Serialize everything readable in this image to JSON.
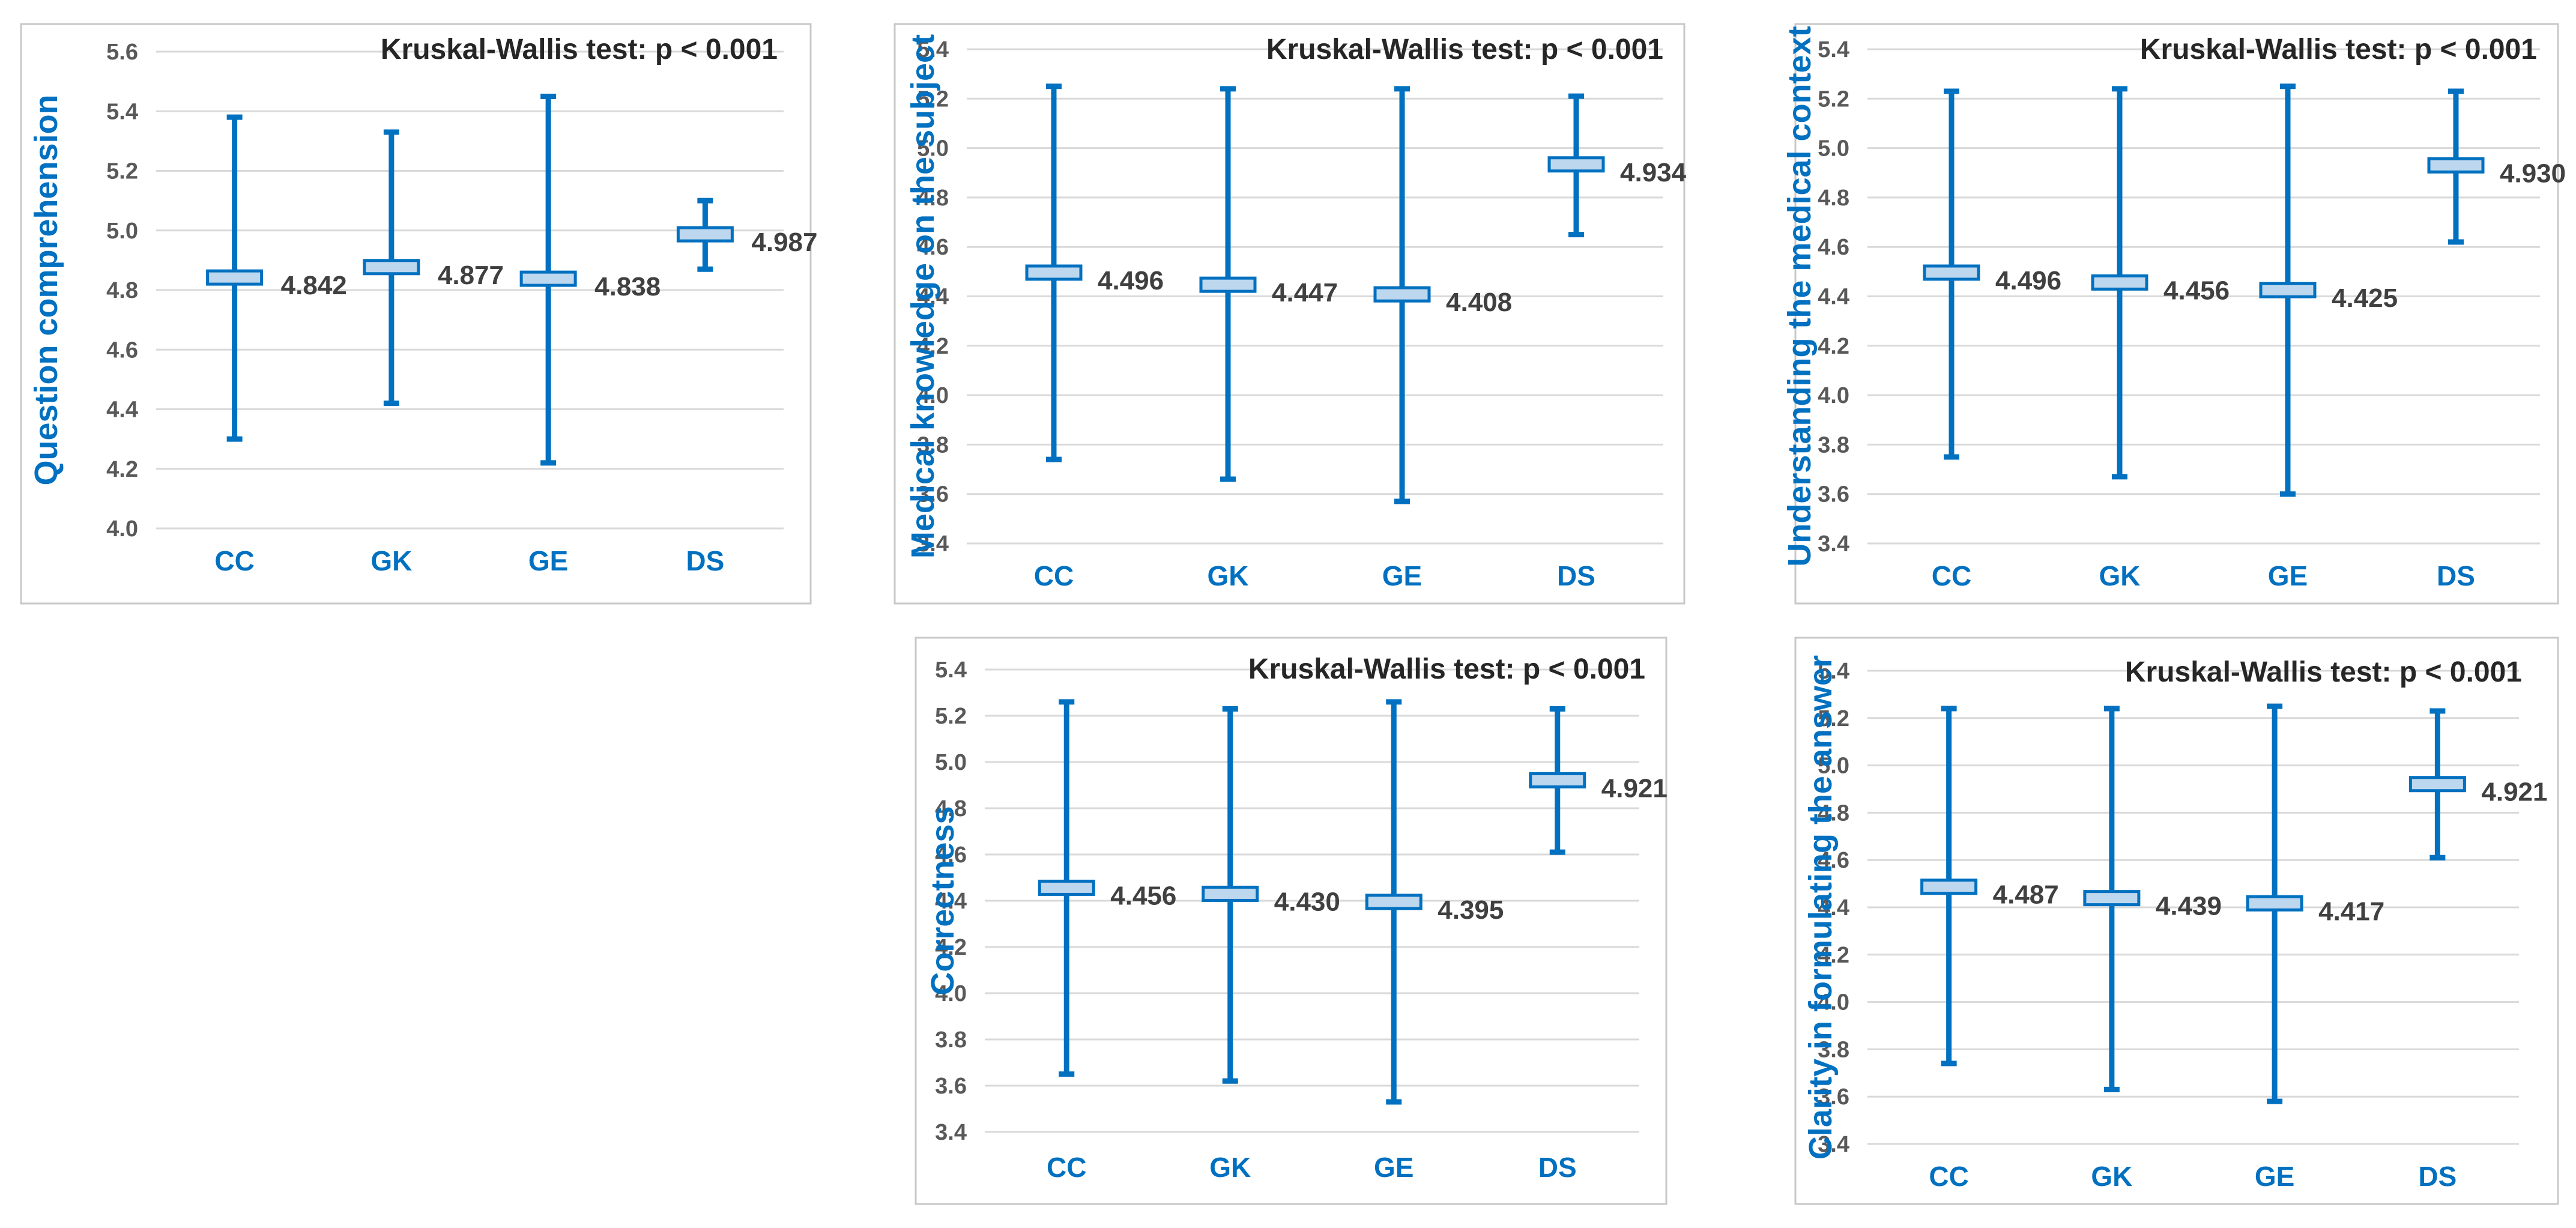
{
  "colors": {
    "accent": "#0070C0",
    "mean_box_fill": "#BDD7EE",
    "gridline": "#D9D9D9",
    "panel_border": "#C8C8C8"
  },
  "chart_data": [
    {
      "type": "error-bar",
      "title": "Kruskal-Wallis test: p < 0.001",
      "ylabel": "Question comprehension",
      "ylim": [
        4.0,
        5.6
      ],
      "yticks": [
        "5.6",
        "5.4",
        "5.2",
        "5.0",
        "4.8",
        "4.6",
        "4.4",
        "4.2",
        "4.0"
      ],
      "grid": true,
      "categories": [
        "CC",
        "GK",
        "GE",
        "DS"
      ],
      "means": [
        4.842,
        4.877,
        4.838,
        4.987
      ],
      "mean_labels": [
        "4.842",
        "4.877",
        "4.838",
        "4.987"
      ],
      "lower": [
        4.3,
        4.42,
        4.22,
        4.87
      ],
      "upper": [
        5.38,
        5.33,
        5.45,
        5.1
      ]
    },
    {
      "type": "error-bar",
      "title": "Kruskal-Wallis test: p < 0.001",
      "ylabel": "Medical knowledge on the subject",
      "ylim": [
        3.4,
        5.4
      ],
      "yticks": [
        "5.4",
        "5.2",
        "5.0",
        "4.8",
        "4.6",
        "4.4",
        "4.2",
        "4.0",
        "3.8",
        "3.6",
        "3.4"
      ],
      "grid": true,
      "categories": [
        "CC",
        "GK",
        "GE",
        "DS"
      ],
      "means": [
        4.496,
        4.447,
        4.408,
        4.934
      ],
      "mean_labels": [
        "4.496",
        "4.447",
        "4.408",
        "4.934"
      ],
      "lower": [
        3.74,
        3.66,
        3.57,
        4.65
      ],
      "upper": [
        5.25,
        5.24,
        5.24,
        5.21
      ]
    },
    {
      "type": "error-bar",
      "title": "Kruskal-Wallis test: p < 0.001",
      "ylabel": "Understanding the medical context",
      "ylim": [
        3.4,
        5.4
      ],
      "yticks": [
        "5.4",
        "5.2",
        "5.0",
        "4.8",
        "4.6",
        "4.4",
        "4.2",
        "4.0",
        "3.8",
        "3.6",
        "3.4"
      ],
      "grid": true,
      "categories": [
        "CC",
        "GK",
        "GE",
        "DS"
      ],
      "means": [
        4.496,
        4.456,
        4.425,
        4.93
      ],
      "mean_labels": [
        "4.496",
        "4.456",
        "4.425",
        "4.930"
      ],
      "lower": [
        3.75,
        3.67,
        3.6,
        4.62
      ],
      "upper": [
        5.23,
        5.24,
        5.25,
        5.23
      ]
    },
    {
      "type": "error-bar",
      "title": "Kruskal-Wallis test: p < 0.001",
      "ylabel": "Correctness",
      "ylim": [
        3.4,
        5.4
      ],
      "yticks": [
        "5.4",
        "5.2",
        "5.0",
        "4.8",
        "4.6",
        "4.4",
        "4.2",
        "4.0",
        "3.8",
        "3.6",
        "3.4"
      ],
      "grid": true,
      "categories": [
        "CC",
        "GK",
        "GE",
        "DS"
      ],
      "means": [
        4.456,
        4.43,
        4.395,
        4.921
      ],
      "mean_labels": [
        "4.456",
        "4.430",
        "4.395",
        "4.921"
      ],
      "lower": [
        3.65,
        3.62,
        3.53,
        4.61
      ],
      "upper": [
        5.26,
        5.23,
        5.26,
        5.23
      ]
    },
    {
      "type": "error-bar",
      "title": "Kruskal-Wallis test: p < 0.001",
      "ylabel": "Clarity in formulating the answer",
      "ylim": [
        3.4,
        5.4
      ],
      "yticks": [
        "5.4",
        "5.2",
        "5.0",
        "4.8",
        "4.6",
        "4.4",
        "4.2",
        "4.0",
        "3.8",
        "3.6",
        "3.4"
      ],
      "grid": true,
      "categories": [
        "CC",
        "GK",
        "GE",
        "DS"
      ],
      "means": [
        4.487,
        4.439,
        4.417,
        4.921
      ],
      "mean_labels": [
        "4.487",
        "4.439",
        "4.417",
        "4.921"
      ],
      "lower": [
        3.74,
        3.63,
        3.58,
        4.61
      ],
      "upper": [
        5.24,
        5.24,
        5.25,
        5.23
      ]
    }
  ]
}
